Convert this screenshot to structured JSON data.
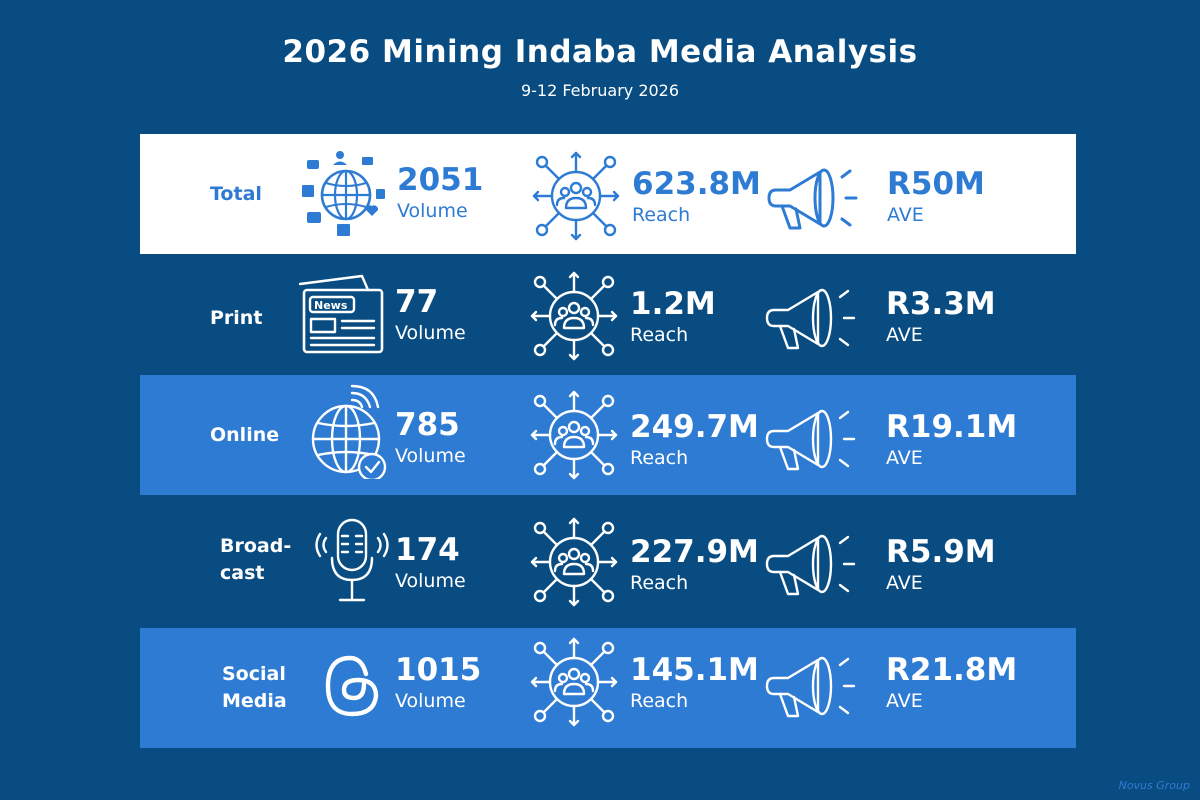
{
  "header": {
    "title": "2026 Mining Indaba Media Analysis",
    "subtitle": "9-12 February 2026"
  },
  "rows": [
    {
      "label_lines": [
        "Total",
        ""
      ],
      "icon": "social-globe-icon",
      "volume": "2051",
      "volume_label": "Volume",
      "reach": "623.8M",
      "reach_label": "Reach",
      "ave": "R50M",
      "ave_label": "AVE"
    },
    {
      "label_lines": [
        "Print",
        ""
      ],
      "icon": "newspaper-icon",
      "volume": "77",
      "volume_label": "Volume",
      "reach": "1.2M",
      "reach_label": "Reach",
      "ave": "R3.3M",
      "ave_label": "AVE"
    },
    {
      "label_lines": [
        "Online",
        ""
      ],
      "icon": "globe-wifi-icon",
      "volume": "785",
      "volume_label": "Volume",
      "reach": "249.7M",
      "reach_label": "Reach",
      "ave": "R19.1M",
      "ave_label": "AVE"
    },
    {
      "label_lines": [
        "Broad-",
        "cast"
      ],
      "icon": "microphone-icon",
      "volume": "174",
      "volume_label": "Volume",
      "reach": "227.9M",
      "reach_label": "Reach",
      "ave": "R5.9M",
      "ave_label": "AVE"
    },
    {
      "label_lines": [
        "Social",
        "Media"
      ],
      "icon": "threads-icon",
      "volume": "1015",
      "volume_label": "Volume",
      "reach": "145.1M",
      "reach_label": "Reach",
      "ave": "R21.8M",
      "ave_label": "AVE"
    }
  ],
  "newspaper_text": "News",
  "footer": "Novus Group",
  "colors": {
    "background": "#094c82",
    "accent": "#2e7bd3",
    "white": "#ffffff"
  }
}
